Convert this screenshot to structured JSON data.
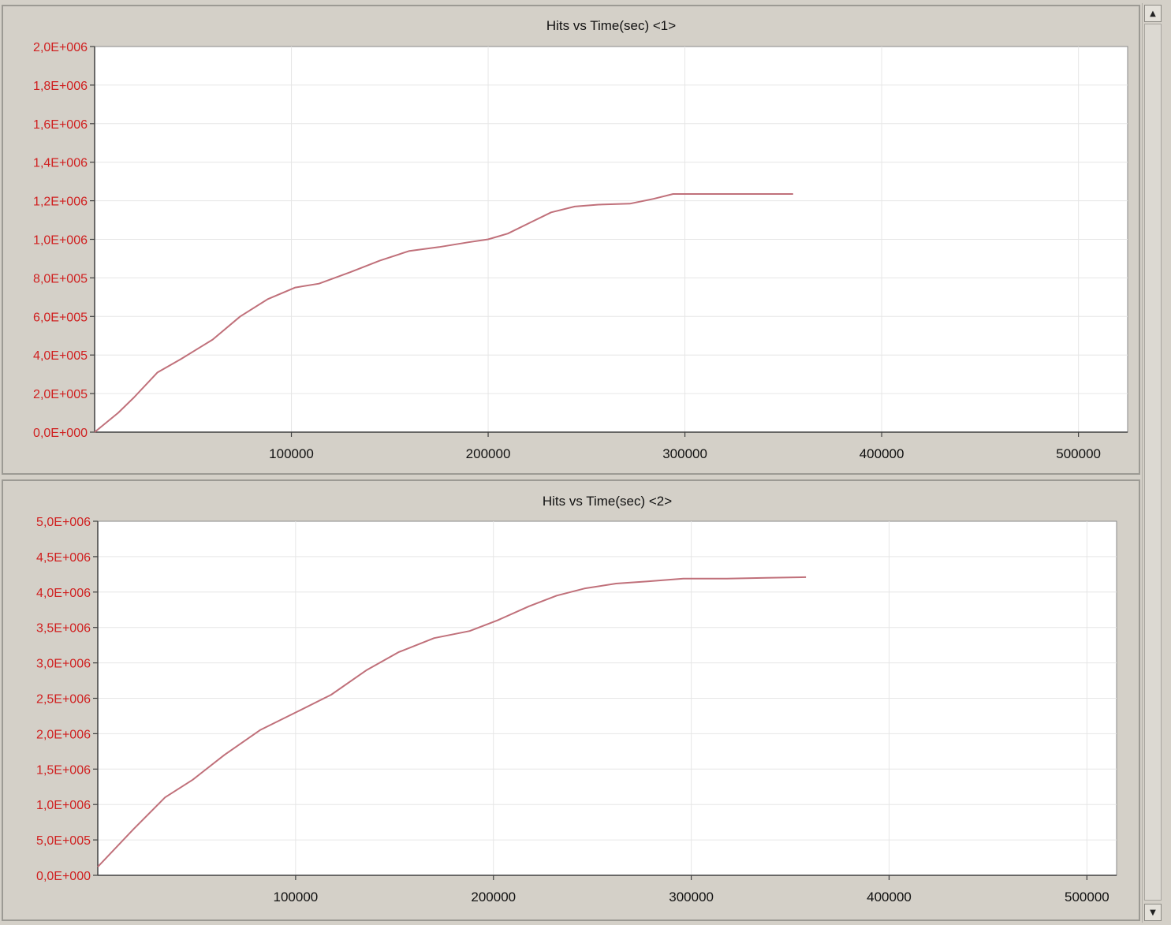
{
  "chart_data": [
    {
      "type": "line",
      "title": "Hits vs Time(sec) <1>",
      "xlabel": "",
      "ylabel": "",
      "xlim": [
        0,
        525000
      ],
      "ylim": [
        0,
        2000000
      ],
      "xticks": [
        100000,
        200000,
        300000,
        400000,
        500000
      ],
      "xtick_labels": [
        "100000",
        "200000",
        "300000",
        "400000",
        "500000"
      ],
      "yticks": [
        0,
        200000,
        400000,
        600000,
        800000,
        1000000,
        1200000,
        1400000,
        1600000,
        1800000,
        2000000
      ],
      "ytick_labels": [
        "0,0E+000",
        "2,0E+005",
        "4,0E+005",
        "6,0E+005",
        "8,0E+005",
        "1,0E+006",
        "1,2E+006",
        "1,4E+006",
        "1,6E+006",
        "1,8E+006",
        "2,0E+006"
      ],
      "grid": true,
      "series": [
        {
          "color": "#c0707a",
          "x": [
            0,
            12000,
            20000,
            32000,
            44000,
            60000,
            74000,
            88000,
            102000,
            114000,
            130000,
            145000,
            160000,
            175000,
            190000,
            200000,
            210000,
            222000,
            232000,
            244000,
            256000,
            272000,
            284000,
            294000,
            310000,
            330000,
            355000
          ],
          "y": [
            0,
            100000,
            180000,
            310000,
            380000,
            480000,
            600000,
            690000,
            750000,
            770000,
            830000,
            890000,
            940000,
            960000,
            985000,
            1000000,
            1030000,
            1090000,
            1140000,
            1170000,
            1180000,
            1185000,
            1210000,
            1235000,
            1235000,
            1235000,
            1235000
          ]
        }
      ]
    },
    {
      "type": "line",
      "title": "Hits vs Time(sec) <2>",
      "xlabel": "",
      "ylabel": "",
      "xlim": [
        0,
        515000
      ],
      "ylim": [
        0,
        5000000
      ],
      "xticks": [
        100000,
        200000,
        300000,
        400000,
        500000
      ],
      "xtick_labels": [
        "100000",
        "200000",
        "300000",
        "400000",
        "500000"
      ],
      "yticks": [
        0,
        500000,
        1000000,
        1500000,
        2000000,
        2500000,
        3000000,
        3500000,
        4000000,
        4500000,
        5000000
      ],
      "ytick_labels": [
        "0,0E+000",
        "5,0E+005",
        "1,0E+006",
        "1,5E+006",
        "2,0E+006",
        "2,5E+006",
        "3,0E+006",
        "3,5E+006",
        "4,0E+006",
        "4,5E+006",
        "5,0E+006"
      ],
      "grid": true,
      "series": [
        {
          "color": "#c0707a",
          "x": [
            0,
            18000,
            34000,
            48000,
            64000,
            82000,
            100000,
            118000,
            136000,
            152000,
            170000,
            188000,
            202000,
            218000,
            232000,
            246000,
            262000,
            278000,
            296000,
            318000,
            338000,
            358000
          ],
          "y": [
            120000,
            650000,
            1100000,
            1350000,
            1700000,
            2050000,
            2300000,
            2550000,
            2900000,
            3150000,
            3350000,
            3450000,
            3600000,
            3800000,
            3950000,
            4050000,
            4120000,
            4150000,
            4190000,
            4190000,
            4200000,
            4210000
          ]
        }
      ]
    }
  ],
  "scrollbar": {
    "up_icon": "▲",
    "down_icon": "▼"
  }
}
